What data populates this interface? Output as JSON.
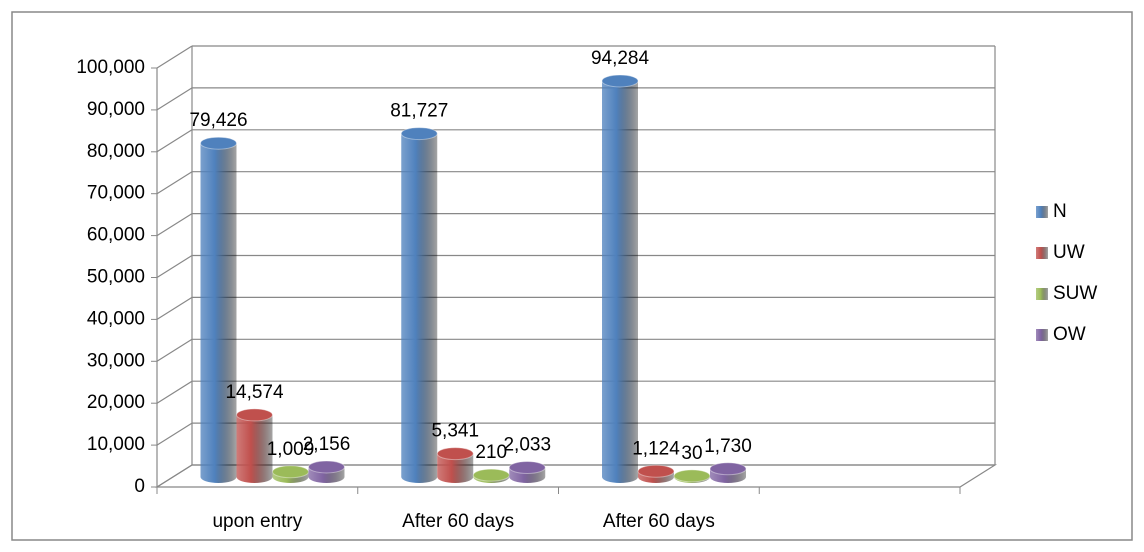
{
  "chart_data": {
    "type": "bar",
    "categories": [
      "upon entry",
      "After 60 days",
      "After 60 days",
      null
    ],
    "series": [
      {
        "name": "N",
        "color": "#4f81bd",
        "values": [
          79426,
          81727,
          94284,
          null
        ],
        "value_labels": [
          "79,426",
          "81,727",
          "94,284",
          null
        ]
      },
      {
        "name": "UW",
        "color": "#c0504d",
        "values": [
          14574,
          5341,
          1124,
          null
        ],
        "value_labels": [
          "14,574",
          "5,341",
          "1,124",
          null
        ]
      },
      {
        "name": "SUW",
        "color": "#9bbb59",
        "values": [
          1009,
          210,
          30,
          null
        ],
        "value_labels": [
          "1,009",
          "210",
          "30",
          null
        ]
      },
      {
        "name": "OW",
        "color": "#8064a2",
        "values": [
          2156,
          2033,
          1730,
          null
        ],
        "value_labels": [
          "2,156",
          "2,033",
          "1,730",
          null
        ]
      }
    ],
    "ylim": [
      0,
      100000
    ],
    "yticks": [
      0,
      {
        "value": 10000,
        "label": "10,000"
      },
      {
        "value": 20000,
        "label": "20,000"
      },
      {
        "value": 30000,
        "label": "30,000"
      },
      {
        "value": 40000,
        "label": "40,000"
      },
      {
        "value": 50000,
        "label": "50,000"
      },
      {
        "value": 60000,
        "label": "60,000"
      },
      {
        "value": 70000,
        "label": "70,000"
      },
      {
        "value": 80000,
        "label": "80,000"
      },
      {
        "value": 90000,
        "label": "90,000"
      },
      {
        "value": 100000,
        "label": "100,000"
      }
    ],
    "grid": true,
    "legend": "right"
  }
}
